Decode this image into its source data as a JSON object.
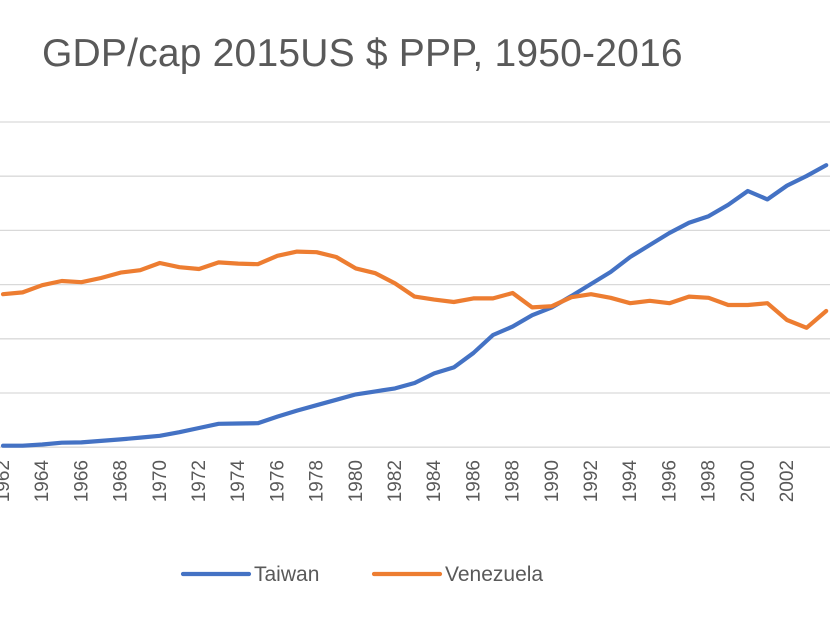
{
  "chart_data": {
    "type": "line",
    "title": "GDP/cap  2015US $ PPP, 1950-2016",
    "xlabel": "",
    "ylabel": "",
    "x_tick_labels": [
      "1962",
      "1964",
      "1966",
      "1968",
      "1970",
      "1972",
      "1974",
      "1976",
      "1978",
      "1980",
      "1982",
      "1984",
      "1986",
      "1988",
      "1990",
      "1992",
      "1994",
      "1996",
      "1998",
      "2000",
      "2002"
    ],
    "x_visible_range": [
      1962,
      2004
    ],
    "grid": true,
    "legend_position": "bottom",
    "series": [
      {
        "name": "Taiwan",
        "color": "#4472C4",
        "points": [
          [
            1962,
            0.05
          ],
          [
            1963,
            0.05
          ],
          [
            1964,
            0.25
          ],
          [
            1965,
            0.55
          ],
          [
            1966,
            0.6
          ],
          [
            1967,
            0.85
          ],
          [
            1968,
            1.1
          ],
          [
            1969,
            1.4
          ],
          [
            1970,
            1.7
          ],
          [
            1971,
            2.3
          ],
          [
            1972,
            3.0
          ],
          [
            1973,
            3.7
          ],
          [
            1974,
            3.75
          ],
          [
            1975,
            3.8
          ],
          [
            1976,
            4.9
          ],
          [
            1977,
            5.9
          ],
          [
            1978,
            6.8
          ],
          [
            1979,
            7.7
          ],
          [
            1980,
            8.6
          ],
          [
            1981,
            9.1
          ],
          [
            1982,
            9.6
          ],
          [
            1983,
            10.5
          ],
          [
            1984,
            12.1
          ],
          [
            1985,
            13.1
          ],
          [
            1986,
            15.5
          ],
          [
            1987,
            18.5
          ],
          [
            1988,
            19.9
          ],
          [
            1989,
            21.8
          ],
          [
            1990,
            23.1
          ],
          [
            1991,
            25.0
          ],
          [
            1992,
            27.0
          ],
          [
            1993,
            29.0
          ],
          [
            1994,
            31.5
          ],
          [
            1995,
            33.5
          ],
          [
            1996,
            35.5
          ],
          [
            1997,
            37.2
          ],
          [
            1998,
            38.3
          ],
          [
            1999,
            40.2
          ],
          [
            2000,
            42.5
          ],
          [
            2001,
            41.1
          ],
          [
            2002,
            43.4
          ],
          [
            2003,
            45.0
          ],
          [
            2004,
            46.8
          ]
        ]
      },
      {
        "name": "Venezuela",
        "color": "#ED7D31",
        "points": [
          [
            1962,
            25.3
          ],
          [
            1963,
            25.6
          ],
          [
            1964,
            26.8
          ],
          [
            1965,
            27.5
          ],
          [
            1966,
            27.3
          ],
          [
            1967,
            28.0
          ],
          [
            1968,
            28.9
          ],
          [
            1969,
            29.3
          ],
          [
            1970,
            30.5
          ],
          [
            1971,
            29.8
          ],
          [
            1972,
            29.5
          ],
          [
            1973,
            30.6
          ],
          [
            1974,
            30.4
          ],
          [
            1975,
            30.3
          ],
          [
            1976,
            31.7
          ],
          [
            1977,
            32.4
          ],
          [
            1978,
            32.3
          ],
          [
            1979,
            31.5
          ],
          [
            1980,
            29.6
          ],
          [
            1981,
            28.8
          ],
          [
            1982,
            27.1
          ],
          [
            1983,
            24.9
          ],
          [
            1984,
            24.4
          ],
          [
            1985,
            24.0
          ],
          [
            1986,
            24.6
          ],
          [
            1987,
            24.6
          ],
          [
            1988,
            25.5
          ],
          [
            1989,
            23.1
          ],
          [
            1990,
            23.3
          ],
          [
            1991,
            24.8
          ],
          [
            1992,
            25.3
          ],
          [
            1993,
            24.7
          ],
          [
            1994,
            23.8
          ],
          [
            1995,
            24.2
          ],
          [
            1996,
            23.8
          ],
          [
            1997,
            24.9
          ],
          [
            1998,
            24.7
          ],
          [
            1999,
            23.5
          ],
          [
            2000,
            23.5
          ],
          [
            2001,
            23.8
          ],
          [
            2002,
            21.0
          ],
          [
            2003,
            19.7
          ],
          [
            2004,
            22.5
          ]
        ]
      }
    ]
  }
}
